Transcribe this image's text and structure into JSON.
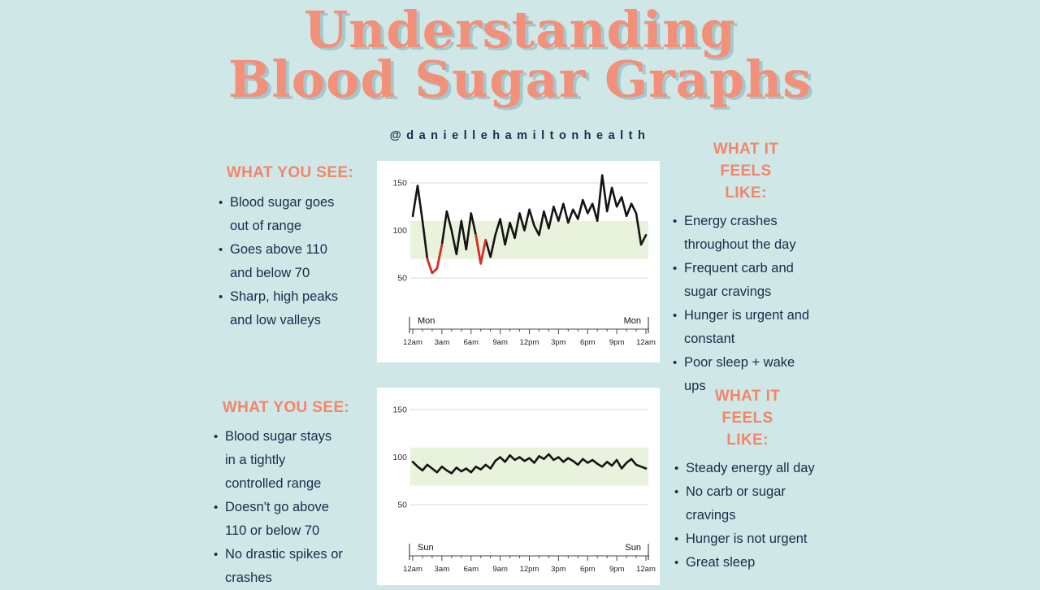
{
  "page": {
    "title_line1": "Understanding",
    "title_line2": "Blood Sugar Graphs",
    "handle": "@daniellehamiltonhealth"
  },
  "colors": {
    "bg": "#cfe8e7",
    "accent": "#f2856a",
    "title": "#f2907a",
    "title_shadow": "#a3c8cd",
    "text": "#1b2a4b",
    "chart_bg": "#ffffff",
    "band": "#e9f2dc",
    "line": "#141414",
    "low": "#e02b20",
    "grid": "#d8d8d8",
    "axis": "#4a4a4a"
  },
  "sections": [
    {
      "see_heading": "WHAT YOU SEE:",
      "see_bullets": [
        "Blood sugar goes out of range",
        "Goes above 110 and below 70",
        "Sharp, high peaks and low valleys"
      ],
      "feels_heading": "WHAT IT FEELS LIKE:",
      "feels_bullets": [
        "Energy crashes throughout the day",
        "Frequent carb and sugar cravings",
        "Hunger is urgent and constant",
        "Poor sleep + wake ups"
      ]
    },
    {
      "see_heading": "WHAT YOU SEE:",
      "see_bullets": [
        "Blood sugar stays in a tightly controlled range",
        "Doesn't go above 110 or below 70",
        "No drastic spikes or crashes"
      ],
      "feels_heading": "WHAT IT FEELS LIKE:",
      "feels_bullets": [
        "Steady energy all day",
        "No carb or sugar cravings",
        "Hunger is not urgent",
        "Great sleep"
      ]
    }
  ],
  "chart_data": [
    {
      "type": "line",
      "title": "",
      "day_label_left": "Mon",
      "day_label_right": "Mon",
      "x_ticks": [
        "12am",
        "3am",
        "6am",
        "9am",
        "12pm",
        "3pm",
        "6pm",
        "9pm",
        "12am"
      ],
      "y_ticks": [
        50,
        100,
        150
      ],
      "ylim": [
        30,
        165
      ],
      "target_band": [
        70,
        110
      ],
      "low_threshold": 70,
      "values": [
        115,
        147,
        110,
        70,
        55,
        60,
        85,
        120,
        100,
        75,
        110,
        80,
        118,
        95,
        65,
        90,
        72,
        95,
        112,
        85,
        108,
        92,
        118,
        100,
        122,
        105,
        95,
        120,
        102,
        125,
        110,
        128,
        108,
        122,
        112,
        132,
        118,
        128,
        110,
        158,
        120,
        145,
        125,
        135,
        115,
        128,
        118,
        85,
        95
      ]
    },
    {
      "type": "line",
      "title": "",
      "day_label_left": "Sun",
      "day_label_right": "Sun",
      "x_ticks": [
        "12am",
        "3am",
        "6am",
        "9am",
        "12pm",
        "3pm",
        "6pm",
        "9pm",
        "12am"
      ],
      "y_ticks": [
        50,
        100,
        150
      ],
      "ylim": [
        30,
        165
      ],
      "target_band": [
        70,
        110
      ],
      "low_threshold": 70,
      "values": [
        95,
        90,
        86,
        92,
        88,
        84,
        90,
        86,
        83,
        89,
        85,
        88,
        84,
        90,
        87,
        92,
        88,
        96,
        100,
        95,
        102,
        97,
        100,
        96,
        99,
        94,
        101,
        98,
        103,
        97,
        100,
        95,
        99,
        96,
        92,
        98,
        94,
        97,
        93,
        90,
        95,
        91,
        97,
        88,
        94,
        98,
        92,
        90,
        88
      ]
    }
  ]
}
